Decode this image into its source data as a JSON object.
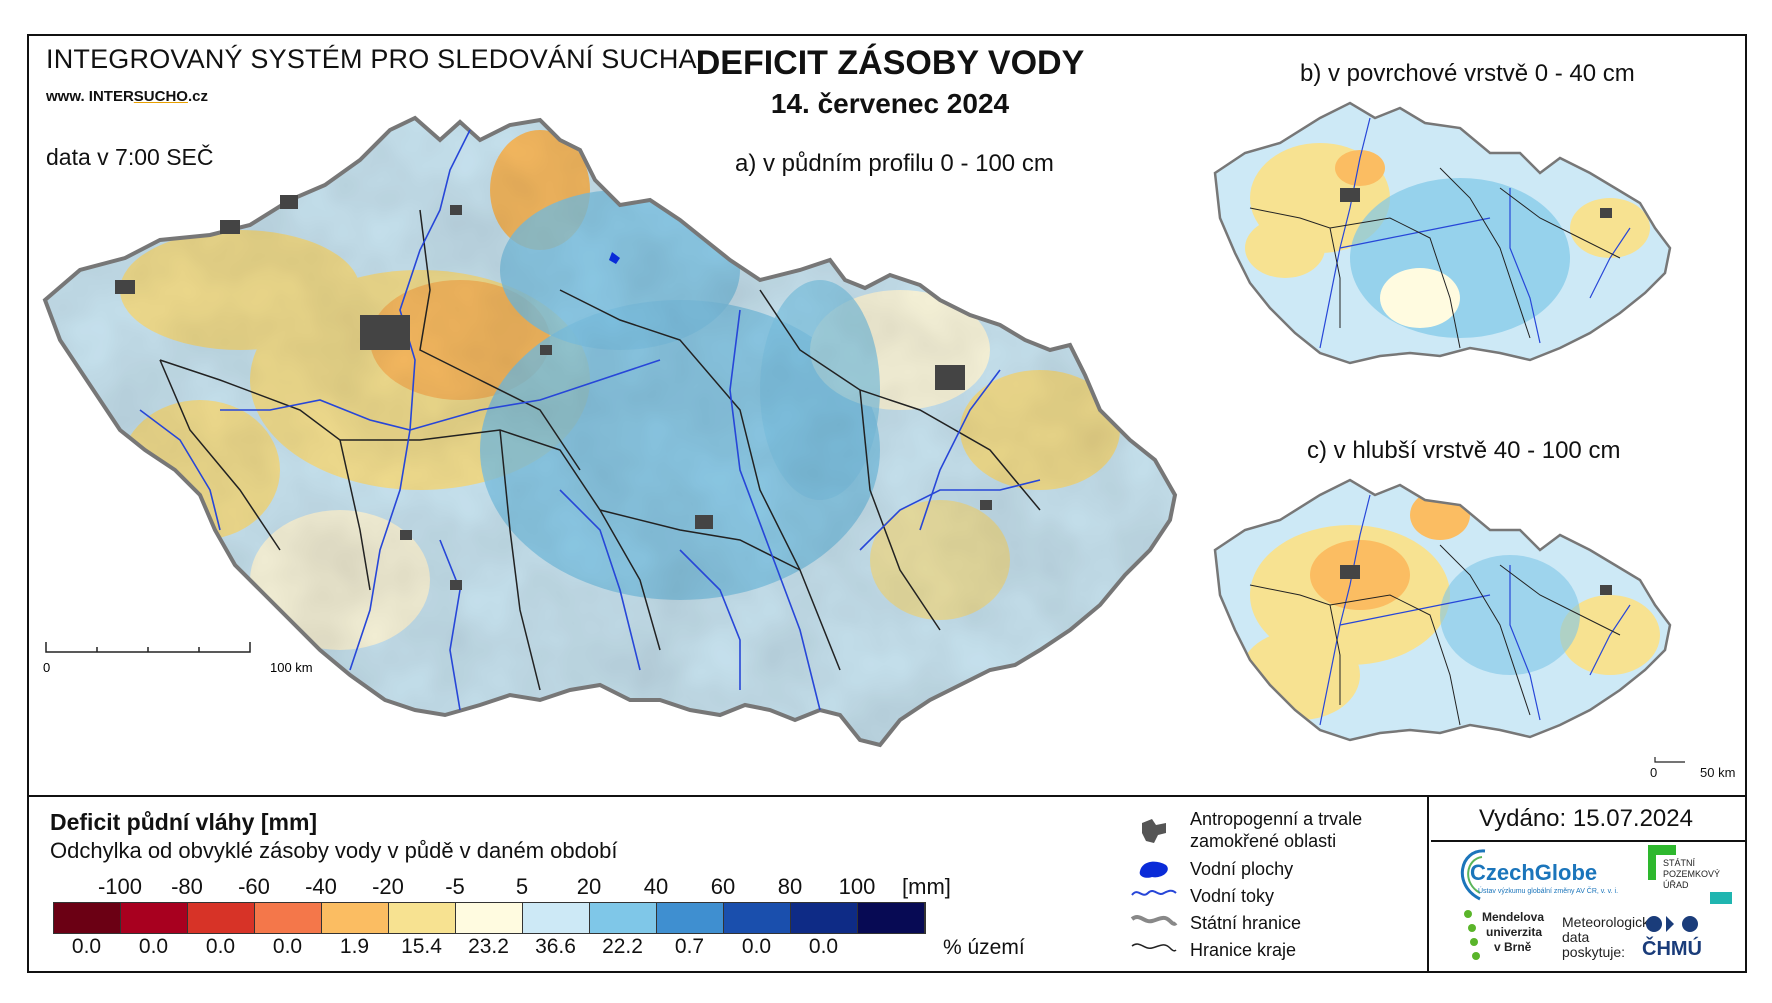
{
  "header": {
    "system_name": "INTEGROVANÝ SYSTÉM PRO SLEDOVÁNÍ SUCHA",
    "website_prefix": "www. INTER",
    "website_sucho": "SUCHO",
    "website_suffix": ".cz",
    "data_time": "data v 7:00 SEČ",
    "title": "DEFICIT ZÁSOBY VODY",
    "date": "14. červenec 2024"
  },
  "maps": {
    "a_label": "a) v půdním profilu 0 - 100 cm",
    "b_label": "b) v povrchové vrstvě 0 - 40 cm",
    "c_label": "c) v hlubší vrstvě 40 - 100 cm",
    "scale_a_zero": "0",
    "scale_a_end": "100 km",
    "scale_bc_zero": "0",
    "scale_bc_end": "50 km"
  },
  "legend": {
    "title": "Deficit půdní vláhy  [mm]",
    "subtitle": "Odchylka od obvyklé zásoby vody v půdě v daném období",
    "scale_labels": [
      "-100",
      "-80",
      "-60",
      "-40",
      "-20",
      "-5",
      "5",
      "20",
      "40",
      "60",
      "80",
      "100"
    ],
    "unit": "[mm]",
    "colors": [
      "#6b0014",
      "#a8001f",
      "#d73327",
      "#f4774a",
      "#fbbd62",
      "#f7e291",
      "#fffbe0",
      "#cde9f6",
      "#7fc7e8",
      "#3f8fd0",
      "#1a4fad",
      "#0e2b86",
      "#070a54"
    ],
    "percentages": [
      "0.0",
      "0.0",
      "0.0",
      "0.0",
      "1.9",
      "15.4",
      "23.2",
      "36.6",
      "22.2",
      "0.7",
      "0.0",
      "0.0"
    ],
    "percent_label": "% území"
  },
  "map_legend": {
    "anthropogenic": "Antropogenní a trvale\nzamokřené oblasti",
    "anthropogenic_l1": "Antropogenní a trvale",
    "anthropogenic_l2": "zamokřené oblasti",
    "water_bodies": "Vodní plochy",
    "water_streams": "Vodní toky",
    "state_border": "Státní hranice",
    "region_border": "Hranice kraje"
  },
  "footer": {
    "issued": "Vydáno: 15.07.2024",
    "czechglobe": "CzechGlobe",
    "czechglobe_sub": "Ústav výzkumu globální změny AV ČR, v. v. i.",
    "spu_l1": "STÁTNÍ",
    "spu_l2": "POZEMKOVÝ",
    "spu_l3": "ÚŘAD",
    "mendel_l1": "Mendelova",
    "mendel_l2": "univerzita",
    "mendel_l3": "v Brně",
    "met_l1": "Meteorologická",
    "met_l2": "data",
    "met_l3": "poskytuje:",
    "chmu": "ČHMÚ"
  }
}
